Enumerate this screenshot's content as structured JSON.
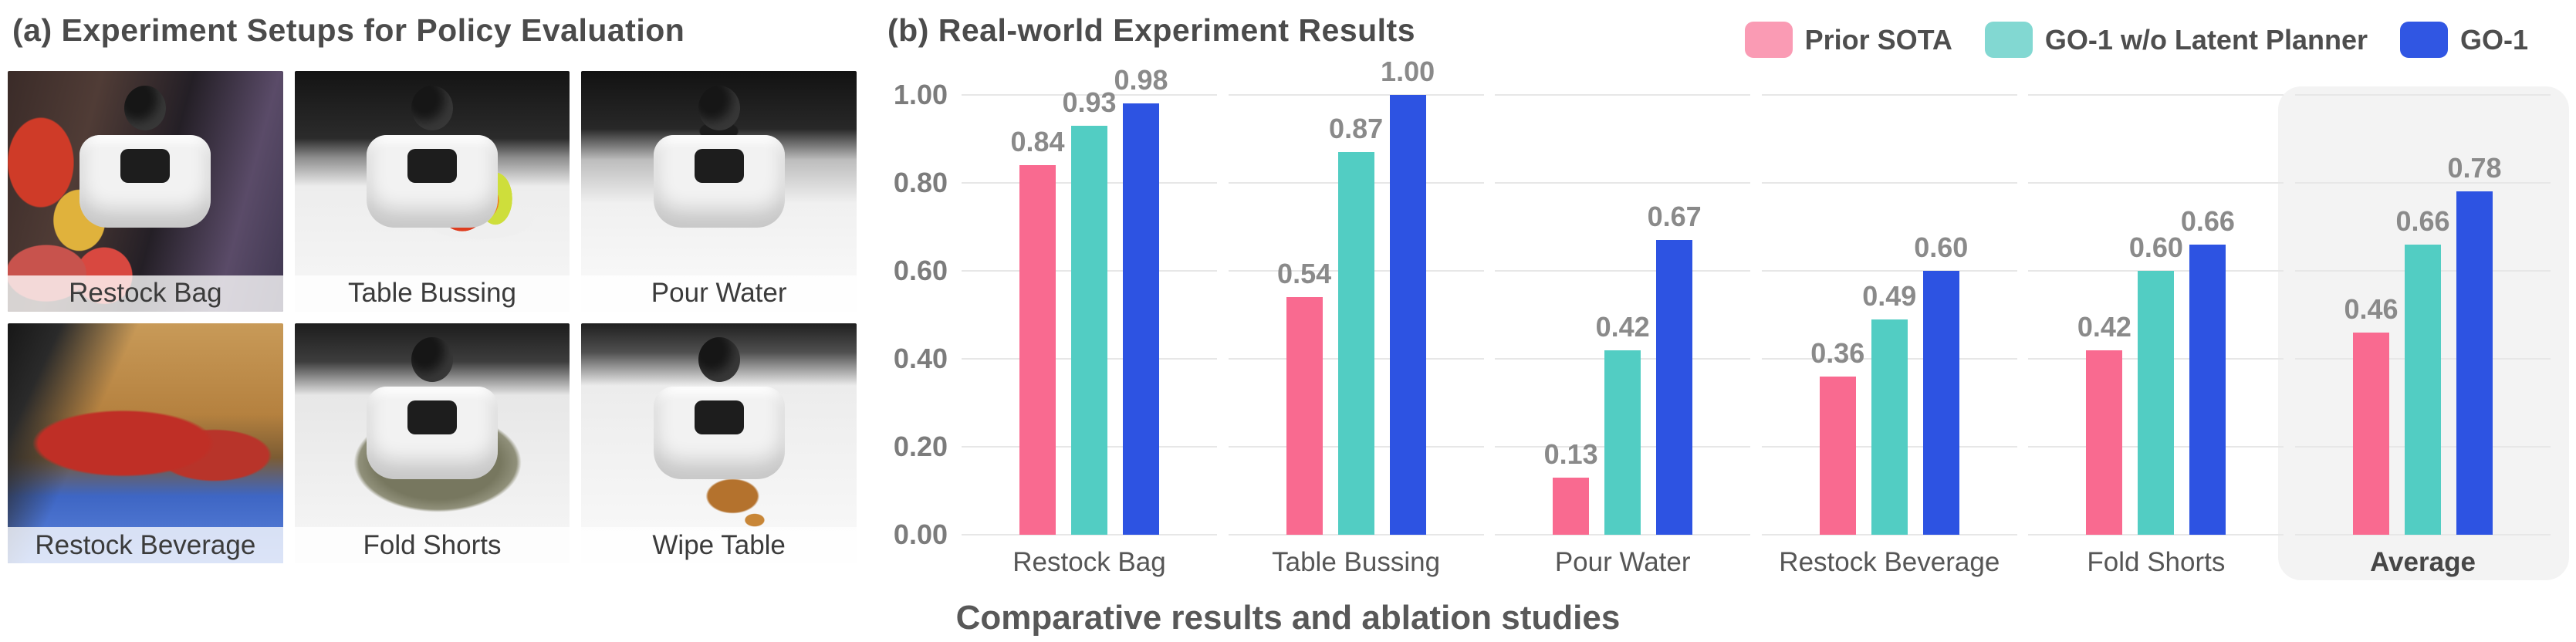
{
  "figure": {
    "panel_a": {
      "title": "(a) Experiment Setups for Policy Evaluation",
      "setups": [
        {
          "label": "Restock Bag"
        },
        {
          "label": "Table Bussing"
        },
        {
          "label": "Pour Water"
        },
        {
          "label": "Restock Beverage"
        },
        {
          "label": "Fold Shorts"
        },
        {
          "label": "Wipe Table"
        }
      ]
    },
    "panel_b": {
      "title": "(b) Real-world Experiment Results"
    },
    "caption": "Comparative results and ablation studies"
  },
  "legend": [
    {
      "label": "Prior SOTA",
      "color": "#FA9BB4"
    },
    {
      "label": "GO-1 w/o Latent Planner",
      "color": "#82D8D2"
    },
    {
      "label": "GO-1",
      "color": "#3056E3"
    }
  ],
  "chart_data": {
    "type": "bar",
    "title": "(b) Real-world Experiment Results",
    "categories": [
      "Restock Bag",
      "Table Bussing",
      "Pour Water",
      "Restock Beverage",
      "Fold Shorts",
      "Average"
    ],
    "series": [
      {
        "name": "Prior SOTA",
        "color": "#F96A90",
        "values": [
          0.84,
          0.54,
          0.13,
          0.36,
          0.42,
          0.46
        ]
      },
      {
        "name": "GO-1 w/o Latent Planner",
        "color": "#52CDC3",
        "values": [
          0.93,
          0.87,
          0.42,
          0.49,
          0.6,
          0.66
        ]
      },
      {
        "name": "GO-1",
        "color": "#2D53E2",
        "values": [
          0.98,
          1.0,
          0.67,
          0.6,
          0.66,
          0.78
        ]
      }
    ],
    "ylim": [
      0,
      1.0
    ],
    "yticks": [
      "0.00",
      "0.20",
      "0.40",
      "0.60",
      "0.80",
      "1.00"
    ],
    "grid": true,
    "value_labels": true,
    "legend_position": "top-right",
    "highlight_category": "Average",
    "highlight_color": "#f3f3f3",
    "gridline_color": "#e7e7e7",
    "xlabel": "",
    "ylabel": ""
  }
}
